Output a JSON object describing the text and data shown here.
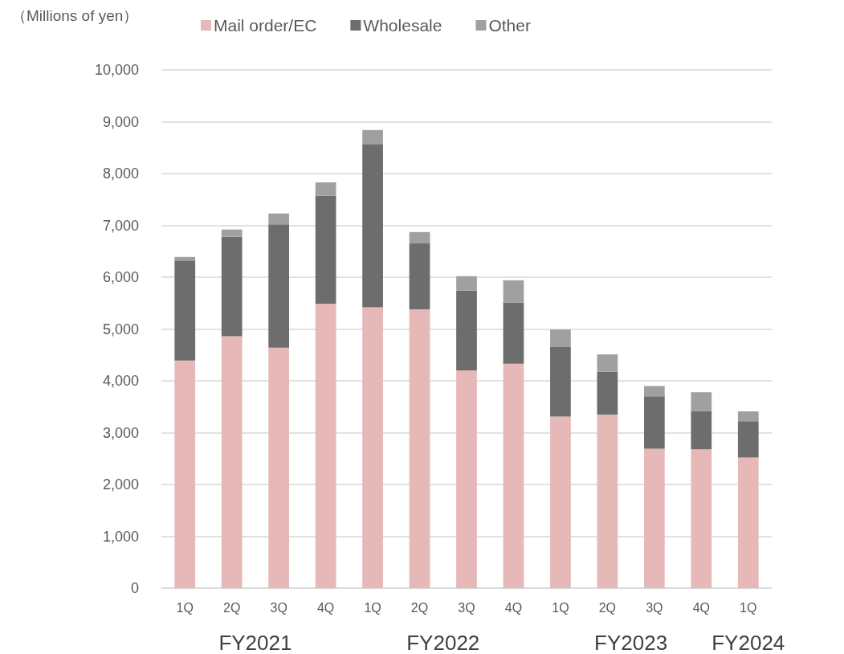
{
  "chart_data": {
    "type": "bar",
    "stacked": true,
    "ylabel": "（Millions of yen）",
    "categories": [
      "1Q",
      "2Q",
      "3Q",
      "4Q",
      "1Q",
      "2Q",
      "3Q",
      "4Q",
      "1Q",
      "2Q",
      "3Q",
      "4Q",
      "1Q"
    ],
    "series": [
      {
        "name": "Mail order/EC",
        "color": "#e6b8b7",
        "values": [
          4390,
          4860,
          4640,
          5490,
          5420,
          5380,
          4200,
          4330,
          3310,
          3350,
          2690,
          2680,
          2520
        ]
      },
      {
        "name": "Wholesale",
        "color": "#6d6d6d",
        "values": [
          1930,
          1920,
          2380,
          2080,
          3150,
          1270,
          1540,
          1180,
          1340,
          830,
          1010,
          740,
          700
        ]
      },
      {
        "name": "Other",
        "color": "#a0a0a0",
        "values": [
          70,
          140,
          210,
          260,
          270,
          220,
          280,
          430,
          340,
          330,
          200,
          360,
          190
        ]
      }
    ],
    "ylim": [
      0,
      10000
    ],
    "yticks": [
      0,
      {
        "value": 1000,
        "label": "1,000"
      },
      {
        "value": 2000,
        "label": "2,000"
      },
      {
        "value": 3000,
        "label": "3,000"
      },
      {
        "value": 4000,
        "label": "4,000"
      },
      {
        "value": 5000,
        "label": "5,000"
      },
      {
        "value": 6000,
        "label": "6,000"
      },
      {
        "value": 7000,
        "label": "7,000"
      },
      {
        "value": 8000,
        "label": "8,000"
      },
      {
        "value": 9000,
        "label": "9,000"
      },
      {
        "value": 10000,
        "label": "10,000"
      }
    ],
    "annotations": [
      "FY2021",
      "FY2022",
      "FY2023",
      "FY2024"
    ],
    "grid": "y",
    "legend": "top"
  }
}
